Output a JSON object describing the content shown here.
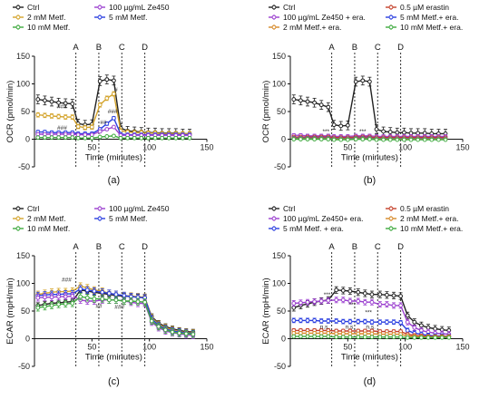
{
  "colors": {
    "Ctrl": "#222222",
    "2 mM Metf.": "#d4a42c",
    "10 mM  Metf.": "#3faa3f",
    "10 mM Metf.": "#3faa3f",
    "10 mM Metf.+ era.": "#3faa3f",
    "100 µg/mL Ze450": "#9b3fcf",
    "100 µg/mL Ze450 + era.": "#9b3fcf",
    "100 µg/mL Ze450+ era.": "#9b3fcf",
    "5 mM Metf.": "#2b3fe0",
    "5 mM Metf.+ era.": "#2b3fe0",
    "5 mM Metf. + era.": "#2b3fe0",
    "0.5 µM erastin": "#c4402a",
    "2 mM Metf.+ era.": "#d68a2a"
  },
  "chart_data": [
    {
      "type": "line",
      "panel": "(a)",
      "xlabel": "Time (minutes)",
      "ylabel": "OCR (pmol/min)",
      "xlim": [
        0,
        150
      ],
      "ylim": [
        -50,
        150
      ],
      "xticks": [
        50,
        100,
        150
      ],
      "yticks": [
        -50,
        0,
        50,
        100,
        150
      ],
      "legend": [
        "Ctrl",
        "2 mM Metf.",
        "10 mM  Metf.",
        "100 µg/mL Ze450",
        "5 mM Metf."
      ],
      "injections": [
        {
          "label": "A",
          "x": 36
        },
        {
          "label": "B",
          "x": 56
        },
        {
          "label": "C",
          "x": 76
        },
        {
          "label": "D",
          "x": 96
        }
      ],
      "x": [
        3,
        9,
        15,
        21,
        27,
        33,
        38,
        44,
        50,
        57,
        63,
        69,
        75,
        81,
        87,
        93,
        99,
        105,
        111,
        117,
        123,
        129,
        135
      ],
      "series": [
        {
          "name": "Ctrl",
          "values": [
            72,
            70,
            68,
            66,
            65,
            64,
            28,
            26,
            27,
            105,
            108,
            106,
            20,
            15,
            14,
            13,
            12,
            12,
            11,
            11,
            11,
            10,
            10
          ],
          "err": 8
        },
        {
          "name": "2 mM Metf.",
          "values": [
            44,
            43,
            42,
            41,
            40,
            40,
            23,
            21,
            22,
            62,
            74,
            82,
            15,
            13,
            12,
            12,
            11,
            11,
            10,
            10,
            10,
            10,
            10
          ],
          "err": 4
        },
        {
          "name": "5 mM Metf.",
          "values": [
            13,
            13,
            12,
            12,
            12,
            12,
            10,
            10,
            10,
            18,
            28,
            38,
            9,
            8,
            8,
            8,
            8,
            8,
            8,
            8,
            8,
            8,
            8
          ],
          "err": 3
        },
        {
          "name": "100 µg/mL Ze450",
          "values": [
            9,
            9,
            9,
            9,
            9,
            9,
            8,
            8,
            8,
            14,
            18,
            22,
            7,
            7,
            7,
            7,
            7,
            7,
            7,
            7,
            7,
            7,
            7
          ],
          "err": 2
        },
        {
          "name": "10 mM  Metf.",
          "values": [
            3,
            3,
            3,
            3,
            3,
            3,
            2,
            2,
            2,
            4,
            5,
            6,
            2,
            2,
            2,
            2,
            2,
            2,
            2,
            2,
            2,
            2,
            2
          ],
          "err": 1
        }
      ],
      "annotations": [
        {
          "text": "###",
          "x": 24,
          "y": 56
        },
        {
          "text": "###",
          "x": 24,
          "y": 17
        },
        {
          "text": "##",
          "x": 60,
          "y": 27
        },
        {
          "text": "###",
          "x": 68,
          "y": 47
        },
        {
          "text": "#",
          "x": 71,
          "y": 86
        }
      ],
      "caption": "(a)"
    },
    {
      "type": "line",
      "panel": "(b)",
      "xlabel": "Time (minutes)",
      "ylabel": "OCR (pmol/min)",
      "xlim": [
        0,
        150
      ],
      "ylim": [
        -50,
        150
      ],
      "xticks": [
        50,
        100,
        150
      ],
      "yticks": [
        -50,
        0,
        50,
        100,
        150
      ],
      "legend": [
        "Ctrl",
        "0.5 µM erastin",
        "100 µg/mL Ze450 + era.",
        "5 mM Metf.+ era.",
        "2 mM Metf.+ era.",
        "10 mM Metf.+ era."
      ],
      "injections": [
        {
          "label": "A",
          "x": 36
        },
        {
          "label": "B",
          "x": 56
        },
        {
          "label": "C",
          "x": 76
        },
        {
          "label": "D",
          "x": 96
        }
      ],
      "x": [
        3,
        9,
        15,
        21,
        27,
        33,
        38,
        44,
        50,
        57,
        63,
        69,
        75,
        81,
        87,
        93,
        99,
        105,
        111,
        117,
        123,
        129,
        135
      ],
      "series": [
        {
          "name": "Ctrl",
          "values": [
            72,
            70,
            68,
            66,
            62,
            58,
            26,
            24,
            25,
            104,
            106,
            104,
            18,
            14,
            13,
            12,
            12,
            11,
            11,
            11,
            10,
            10,
            10
          ],
          "err": 8
        },
        {
          "name": "100 µg/mL Ze450 + era.",
          "values": [
            7,
            7,
            6,
            6,
            6,
            6,
            5,
            5,
            5,
            6,
            6,
            6,
            5,
            5,
            5,
            5,
            5,
            5,
            5,
            5,
            5,
            5,
            5
          ],
          "err": 3
        },
        {
          "name": "0.5 µM erastin",
          "values": [
            4,
            4,
            4,
            4,
            4,
            4,
            3,
            3,
            3,
            4,
            4,
            4,
            3,
            3,
            3,
            3,
            3,
            3,
            3,
            3,
            3,
            3,
            3
          ],
          "err": 2
        },
        {
          "name": "5 mM Metf.+ era.",
          "values": [
            2,
            2,
            2,
            2,
            2,
            2,
            1,
            1,
            1,
            2,
            2,
            2,
            1,
            1,
            1,
            1,
            1,
            1,
            1,
            1,
            1,
            1,
            1
          ],
          "err": 1
        },
        {
          "name": "2 mM Metf.+ era.",
          "values": [
            1,
            1,
            1,
            1,
            1,
            1,
            0,
            0,
            0,
            1,
            1,
            1,
            0,
            0,
            0,
            0,
            0,
            0,
            0,
            0,
            0,
            0,
            0
          ],
          "err": 1
        },
        {
          "name": "10 mM Metf.+ era.",
          "values": [
            0,
            0,
            0,
            0,
            0,
            0,
            -1,
            -1,
            -1,
            0,
            0,
            0,
            -1,
            -1,
            -1,
            -1,
            -1,
            -1,
            -1,
            -1,
            -1,
            -1,
            -1
          ],
          "err": 1
        }
      ],
      "annotations": [
        {
          "text": "***",
          "x": 31,
          "y": 11
        },
        {
          "text": "***",
          "x": 63,
          "y": 11
        }
      ],
      "caption": "(b)"
    },
    {
      "type": "line",
      "panel": "(c)",
      "xlabel": "Time (minutes)",
      "ylabel": "ECAR (mpH/min)",
      "xlim": [
        0,
        150
      ],
      "ylim": [
        -50,
        150
      ],
      "xticks": [
        50,
        100,
        150
      ],
      "yticks": [
        -50,
        0,
        50,
        100,
        150
      ],
      "legend": [
        "Ctrl",
        "2 mM Metf.",
        "10 mM  Metf.",
        "100 µg/mL Ze450",
        "5 mM Metf."
      ],
      "injections": [
        {
          "label": "A",
          "x": 36
        },
        {
          "label": "B",
          "x": 56
        },
        {
          "label": "C",
          "x": 76
        },
        {
          "label": "D",
          "x": 96
        }
      ],
      "x": [
        3,
        9,
        15,
        21,
        27,
        33,
        40,
        46,
        52,
        59,
        65,
        71,
        78,
        84,
        90,
        96,
        102,
        108,
        114,
        120,
        126,
        132,
        138
      ],
      "series": [
        {
          "name": "Ctrl",
          "values": [
            60,
            62,
            64,
            65,
            66,
            67,
            88,
            86,
            84,
            82,
            80,
            78,
            77,
            76,
            75,
            74,
            40,
            28,
            22,
            18,
            15,
            13,
            12
          ],
          "err": 5
        },
        {
          "name": "2 mM Metf.",
          "values": [
            80,
            82,
            84,
            85,
            85,
            86,
            95,
            92,
            88,
            86,
            82,
            80,
            78,
            77,
            76,
            75,
            38,
            26,
            20,
            16,
            13,
            11,
            10
          ],
          "err": 6
        },
        {
          "name": "5 mM Metf.",
          "values": [
            78,
            79,
            80,
            80,
            81,
            81,
            90,
            88,
            86,
            84,
            82,
            80,
            78,
            76,
            75,
            74,
            36,
            24,
            18,
            14,
            12,
            10,
            9
          ],
          "err": 6
        },
        {
          "name": "100 µg/mL Ze450",
          "values": [
            74,
            75,
            75,
            76,
            76,
            77,
            70,
            68,
            68,
            70,
            70,
            70,
            68,
            66,
            64,
            64,
            30,
            20,
            14,
            11,
            9,
            7,
            6
          ],
          "err": 6
        },
        {
          "name": "10 mM  Metf.",
          "values": [
            56,
            58,
            60,
            62,
            63,
            64,
            76,
            74,
            72,
            72,
            70,
            70,
            68,
            68,
            67,
            66,
            32,
            22,
            16,
            12,
            10,
            9,
            8
          ],
          "err": 6
        }
      ],
      "annotations": [
        {
          "text": "###",
          "x": 28,
          "y": 103
        },
        {
          "text": "##",
          "x": 56,
          "y": 56
        },
        {
          "text": "###",
          "x": 74,
          "y": 54
        }
      ],
      "caption": "(c)"
    },
    {
      "type": "line",
      "panel": "(d)",
      "xlabel": "Time (minutes)",
      "ylabel": "ECAR (mpH/min)",
      "xlim": [
        0,
        150
      ],
      "ylim": [
        -50,
        150
      ],
      "xticks": [
        50,
        100,
        150
      ],
      "yticks": [
        -50,
        0,
        50,
        100,
        150
      ],
      "legend": [
        "Ctrl",
        "0.5 µM erastin",
        "100 µg/mL Ze450+ era.",
        "2 mM Metf.+ era.",
        "5 mM Metf. + era.",
        "10 mM Metf.+ era."
      ],
      "injections": [
        {
          "label": "A",
          "x": 36
        },
        {
          "label": "B",
          "x": 56
        },
        {
          "label": "C",
          "x": 76
        },
        {
          "label": "D",
          "x": 96
        }
      ],
      "x": [
        3,
        9,
        15,
        21,
        27,
        33,
        40,
        46,
        52,
        59,
        65,
        71,
        78,
        84,
        90,
        96,
        102,
        108,
        114,
        120,
        126,
        132,
        138
      ],
      "series": [
        {
          "name": "Ctrl",
          "values": [
            56,
            60,
            63,
            66,
            68,
            70,
            88,
            87,
            86,
            84,
            82,
            80,
            80,
            79,
            78,
            77,
            42,
            30,
            24,
            20,
            18,
            16,
            15
          ],
          "err": 6
        },
        {
          "name": "100 µg/mL Ze450+ era.",
          "values": [
            64,
            65,
            66,
            67,
            68,
            69,
            70,
            70,
            68,
            68,
            66,
            66,
            62,
            62,
            60,
            60,
            30,
            20,
            15,
            12,
            10,
            9,
            8
          ],
          "err": 5
        },
        {
          "name": "5 mM Metf. + era.",
          "values": [
            33,
            33,
            33,
            33,
            32,
            32,
            32,
            31,
            31,
            31,
            31,
            30,
            30,
            30,
            30,
            29,
            15,
            10,
            8,
            6,
            5,
            5,
            4
          ],
          "err": 4
        },
        {
          "name": "0.5 µM erastin",
          "values": [
            15,
            15,
            15,
            15,
            15,
            15,
            14,
            14,
            14,
            14,
            14,
            14,
            13,
            13,
            13,
            13,
            8,
            6,
            5,
            4,
            4,
            4,
            4
          ],
          "err": 3
        },
        {
          "name": "2 mM Metf.+ era.",
          "values": [
            10,
            10,
            10,
            10,
            10,
            10,
            9,
            9,
            9,
            9,
            9,
            9,
            8,
            8,
            8,
            8,
            5,
            4,
            3,
            3,
            3,
            3,
            3
          ],
          "err": 3
        },
        {
          "name": "10 mM Metf.+ era.",
          "values": [
            4,
            4,
            4,
            4,
            4,
            4,
            3,
            3,
            3,
            3,
            3,
            3,
            3,
            3,
            3,
            3,
            2,
            2,
            2,
            2,
            2,
            2,
            2
          ],
          "err": 2
        }
      ],
      "annotations": [
        {
          "text": "***",
          "x": 32,
          "y": 76
        },
        {
          "text": "***",
          "x": 54,
          "y": 58
        },
        {
          "text": "***",
          "x": 68,
          "y": 44
        },
        {
          "text": "n.s.",
          "x": 30,
          "y": 18
        },
        {
          "text": "n.s.",
          "x": 52,
          "y": 18
        },
        {
          "text": "n.s.",
          "x": 70,
          "y": 18
        }
      ],
      "caption": "(d)"
    }
  ]
}
